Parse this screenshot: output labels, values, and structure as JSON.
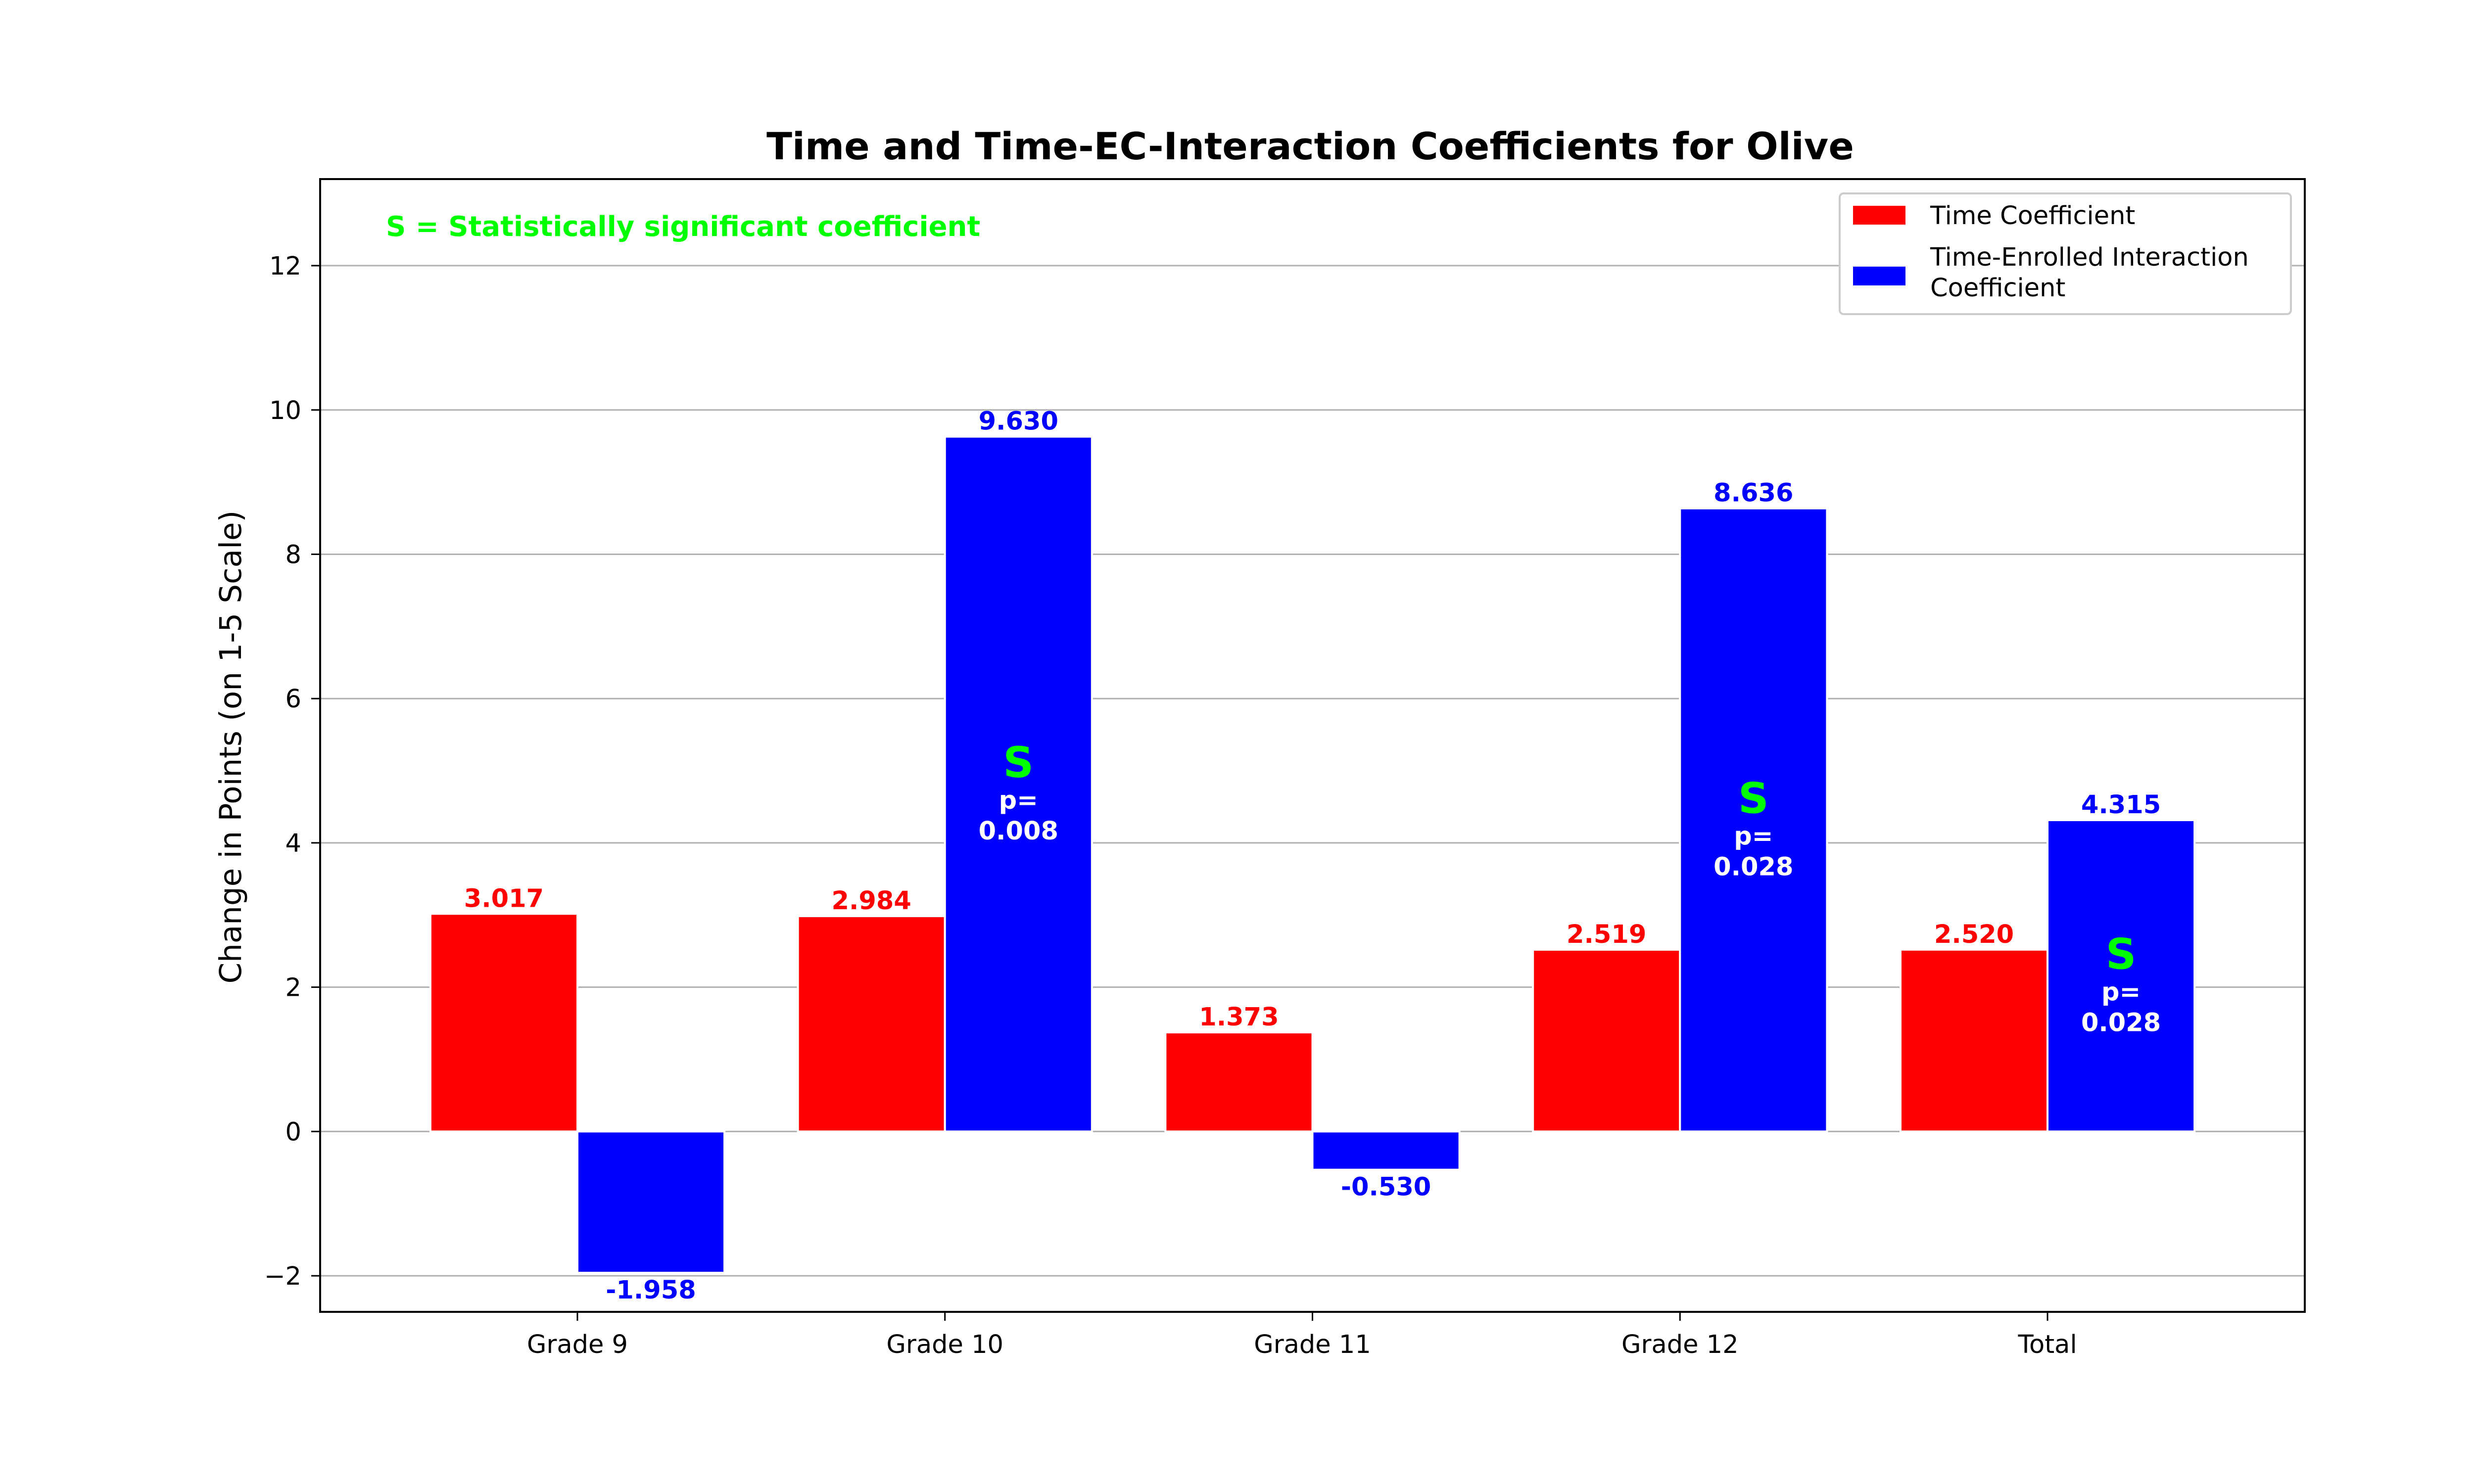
{
  "chart_data": {
    "type": "bar",
    "title": "Time and Time-EC-Interaction Coefficients for Olive",
    "xlabel": "",
    "ylabel": "Change in Points (on 1-5 Scale)",
    "ylim": [
      -2.5,
      13.2
    ],
    "yticks": [
      -2,
      0,
      2,
      4,
      6,
      8,
      10,
      12
    ],
    "ytick_labels": [
      "−2",
      "0",
      "2",
      "4",
      "6",
      "8",
      "10",
      "12"
    ],
    "grid": "horizontal",
    "categories": [
      "Grade 9",
      "Grade 10",
      "Grade 11",
      "Grade 12",
      "Total"
    ],
    "series": [
      {
        "name": "Time Coefficient",
        "color": "#ff0000",
        "values": [
          3.017,
          2.984,
          1.373,
          2.519,
          2.52
        ],
        "labels": [
          "3.017",
          "2.984",
          "1.373",
          "2.519",
          "2.520"
        ],
        "significance": [
          null,
          null,
          null,
          null,
          null
        ]
      },
      {
        "name_lines": [
          "Time-Enrolled Interaction",
          "Coefficient"
        ],
        "color": "#0000ff",
        "values": [
          -1.958,
          9.63,
          -0.53,
          8.636,
          4.315
        ],
        "labels": [
          "-1.958",
          "9.630",
          "-0.530",
          "8.636",
          "4.315"
        ],
        "significance": [
          null,
          {
            "mark": "S",
            "p_label": "p=",
            "p_value": "0.008"
          },
          null,
          {
            "mark": "S",
            "p_label": "p=",
            "p_value": "0.028"
          },
          {
            "mark": "S",
            "p_label": "p=",
            "p_value": "0.028"
          }
        ]
      }
    ],
    "annotation": "S = Statistically significant coefficient",
    "annotation_color": "#00ff00",
    "significance_color": "#00ff00",
    "legend_position": "top-right"
  }
}
